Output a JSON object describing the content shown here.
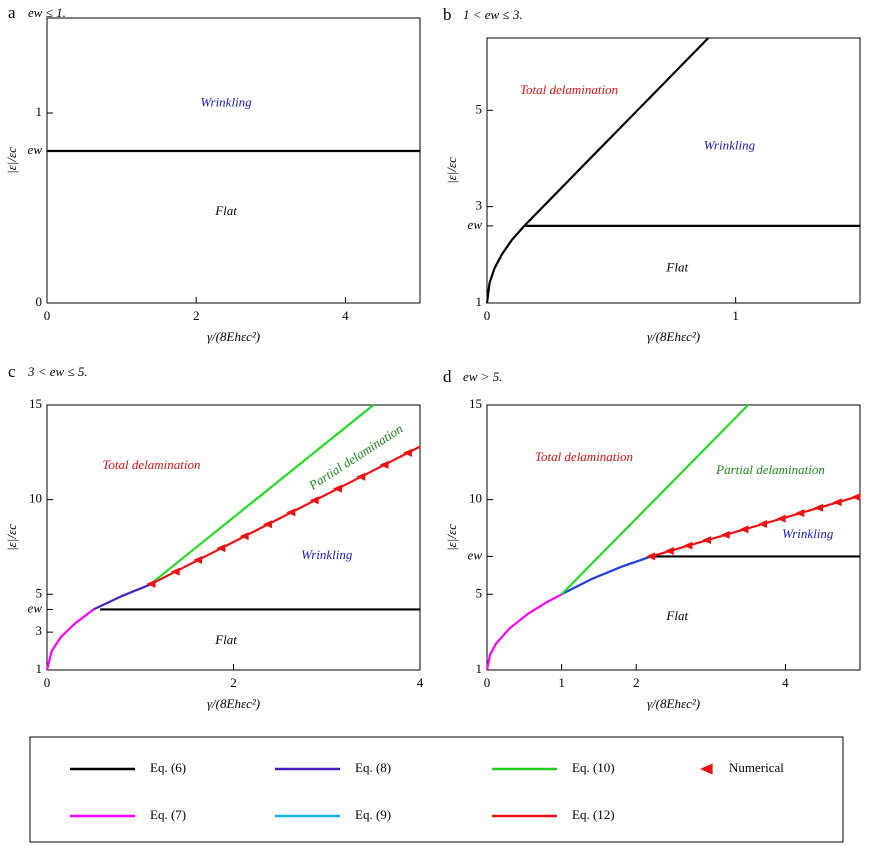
{
  "chart_data": [
    {
      "type": "line",
      "label": "a",
      "subtitle": "ew ≤ 1.",
      "y_label": "|ε|/εc",
      "x_label": "γ/(8Ehεc²)",
      "xlim": [
        0,
        5
      ],
      "ylim": [
        0,
        1.5
      ],
      "xticks": [
        0,
        2,
        4
      ],
      "yticks": [
        0,
        1,
        {
          "value": 0.8,
          "label": "ew"
        }
      ],
      "series": [
        {
          "color": "#000000",
          "x": [
            0,
            5
          ],
          "values": [
            0.8,
            0.8
          ]
        }
      ],
      "annotations": [
        {
          "text": "Wrinkling",
          "color": "#1a1ad0"
        },
        {
          "text": "Flat",
          "color": "#000000"
        }
      ]
    },
    {
      "type": "line",
      "label": "b",
      "subtitle": "1 < ew ≤ 3.",
      "y_label": "|ε|/εc",
      "x_label": "γ/(8Ehεc²)",
      "xlim": [
        0,
        1.5
      ],
      "ylim": [
        1,
        6.5
      ],
      "xticks": [
        0,
        1
      ],
      "yticks": [
        1,
        3,
        5,
        {
          "value": 2.6,
          "label": "ew"
        }
      ],
      "series": [
        {
          "color": "#000000",
          "x": [
            0,
            0.01,
            0.03,
            0.06,
            0.1,
            0.15,
            0.4,
            0.89
          ],
          "values": [
            1,
            1.41,
            1.72,
            2.01,
            2.31,
            2.6,
            3.92,
            6.5
          ]
        },
        {
          "color": "#000000",
          "x": [
            0.15,
            1.5
          ],
          "values": [
            2.6,
            2.6
          ]
        }
      ],
      "annotations": [
        {
          "text": "Total delamination",
          "color": "#e01010"
        },
        {
          "text": "Wrinkling",
          "color": "#1a1ad0"
        },
        {
          "text": "Flat",
          "color": "#000000"
        }
      ]
    },
    {
      "type": "line",
      "label": "c",
      "subtitle": "3 < ew ≤ 5.",
      "y_label": "|ε|/εc",
      "x_label": "γ/(8Ehεc²)",
      "xlim": [
        0,
        4
      ],
      "ylim": [
        1,
        15
      ],
      "xticks": [
        0,
        2,
        4
      ],
      "yticks": [
        1,
        3,
        5,
        10,
        15,
        {
          "value": 4.2,
          "label": "ew"
        }
      ],
      "series": [
        {
          "color": "#ff00ff",
          "x": [
            0,
            0.05,
            0.15,
            0.3,
            0.5
          ],
          "values": [
            1,
            2.0,
            2.75,
            3.46,
            4.2
          ]
        },
        {
          "color": "#4a1fc0",
          "x": [
            0.5,
            0.8,
            1.1
          ],
          "values": [
            4.2,
            4.9,
            5.5
          ]
        },
        {
          "color": "#000000",
          "x": [
            0.57,
            4
          ],
          "values": [
            4.2,
            4.2
          ]
        },
        {
          "color": "#22dd22",
          "x": [
            1.1,
            3.5
          ],
          "values": [
            5.5,
            15
          ]
        },
        {
          "color": "#ee1111",
          "x": [
            1.1,
            4
          ],
          "values": [
            5.5,
            12.8
          ]
        },
        {
          "color": "#ee1111",
          "marker": "triangle-left",
          "x": [
            1.12,
            1.38,
            1.62,
            1.87,
            2.12,
            2.37,
            2.62,
            2.87,
            3.12,
            3.37,
            3.62,
            3.87
          ],
          "values": [
            5.55,
            6.2,
            6.81,
            7.44,
            8.07,
            8.7,
            9.33,
            9.96,
            10.58,
            11.21,
            11.84,
            12.47
          ]
        }
      ],
      "annotations": [
        {
          "text": "Total delamination",
          "color": "#e01010"
        },
        {
          "text": "Partial delamination",
          "color": "#1a8a1a"
        },
        {
          "text": "Wrinkling",
          "color": "#1a1ad0"
        },
        {
          "text": "Flat",
          "color": "#000000"
        }
      ]
    },
    {
      "type": "line",
      "label": "d",
      "subtitle": "ew > 5.",
      "y_label": "|ε|/εc",
      "x_label": "γ/(8Ehεc²)",
      "xlim": [
        0,
        5
      ],
      "ylim": [
        1,
        15
      ],
      "xticks": [
        0,
        1,
        2,
        4
      ],
      "yticks": [
        1,
        5,
        10,
        15,
        {
          "value": 7,
          "label": "ew"
        }
      ],
      "series": [
        {
          "color": "#ff00ff",
          "x": [
            0,
            0.04,
            0.12,
            0.3,
            0.55,
            0.8,
            1
          ],
          "values": [
            1,
            1.8,
            2.39,
            3.19,
            3.97,
            4.58,
            5
          ]
        },
        {
          "color": "#2040e0",
          "x": [
            1,
            1.4,
            1.8,
            2.2
          ],
          "values": [
            5,
            5.8,
            6.45,
            7
          ]
        },
        {
          "color": "#000000",
          "x": [
            2.2,
            5
          ],
          "values": [
            7,
            7
          ]
        },
        {
          "color": "#22dd22",
          "x": [
            1,
            3.5
          ],
          "values": [
            5,
            15
          ]
        },
        {
          "color": "#ee1111",
          "x": [
            2.2,
            5
          ],
          "values": [
            7,
            10.2
          ]
        },
        {
          "color": "#ee1111",
          "marker": "triangle-left",
          "x": [
            2.2,
            2.45,
            2.7,
            2.95,
            3.2,
            3.45,
            3.7,
            3.95,
            4.2,
            4.45,
            4.7,
            4.95
          ],
          "values": [
            7,
            7.29,
            7.57,
            7.86,
            8.14,
            8.43,
            8.71,
            9.0,
            9.29,
            9.57,
            9.86,
            10.14
          ]
        }
      ],
      "annotations": [
        {
          "text": "Total delamination",
          "color": "#e01010"
        },
        {
          "text": "Partial delamination",
          "color": "#1a8a1a"
        },
        {
          "text": "Wrinkling",
          "color": "#1a1ad0"
        },
        {
          "text": "Flat",
          "color": "#000000"
        }
      ]
    }
  ],
  "legend": {
    "entries": [
      {
        "name": "Eq. (6)",
        "color": "#000000"
      },
      {
        "name": "Eq. (8)",
        "color": "#4a1fc0"
      },
      {
        "name": "Eq. (10)",
        "color": "#22cc22"
      },
      {
        "name": "Numerical",
        "color": "#ee1111",
        "marker": "triangle-left"
      },
      {
        "name": "Eq. (7)",
        "color": "#ff00ff"
      },
      {
        "name": "Eq. (9)",
        "color": "#1ab0f0"
      },
      {
        "name": "Eq. (12)",
        "color": "#ee1111"
      }
    ]
  }
}
